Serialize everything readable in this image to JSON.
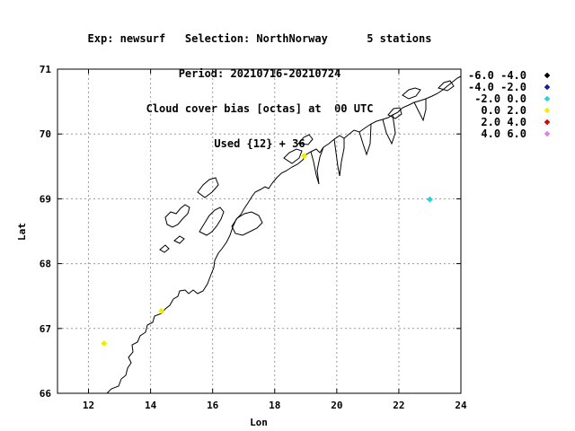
{
  "chart_data": {
    "type": "scatter",
    "title_lines": [
      "Exp: newsurf   Selection: NorthNorway      5 stations",
      "Period: 20210716-20210724",
      "Cloud cover bias [octas] at  00 UTC",
      "Used {12} + 36"
    ],
    "xlabel": "Lon",
    "ylabel": "Lat",
    "xlim": [
      11,
      24
    ],
    "ylim": [
      66,
      71
    ],
    "x_ticks": [
      12,
      14,
      16,
      18,
      20,
      22,
      24
    ],
    "y_ticks": [
      66,
      67,
      68,
      69,
      70,
      71
    ],
    "grid": true,
    "legend_position": "right",
    "legend": [
      {
        "label": "-6.0 -4.0",
        "color": "#000000"
      },
      {
        "label": "-4.0 -2.0",
        "color": "#1a1aa0"
      },
      {
        "label": "-2.0 0.0",
        "color": "#22d6d6"
      },
      {
        "label": "0.0 2.0",
        "color": "#eeee00"
      },
      {
        "label": "2.0 4.0",
        "color": "#dd0000"
      },
      {
        "label": "4.0 6.0",
        "color": "#e080e0"
      }
    ],
    "points": [
      {
        "lon": 12.5,
        "lat": 66.77,
        "color": "#eeee00"
      },
      {
        "lon": 14.35,
        "lat": 67.27,
        "color": "#eeee00"
      },
      {
        "lon": 18.95,
        "lat": 69.66,
        "color": "#eeee00"
      },
      {
        "lon": 23.0,
        "lat": 68.99,
        "color": "#22d6d6"
      }
    ]
  }
}
